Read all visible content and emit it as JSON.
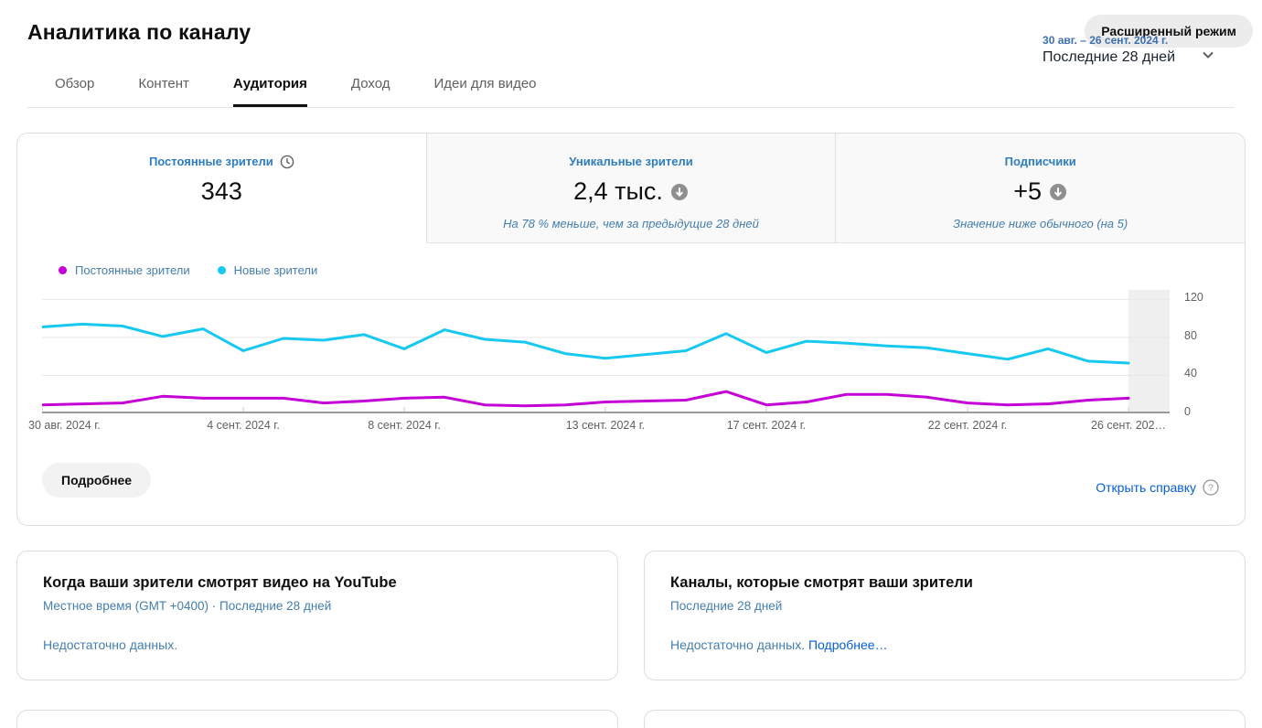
{
  "header": {
    "title": "Аналитика по каналу",
    "advanced_mode_label": "Расширенный режим"
  },
  "tabs": [
    {
      "label": "Обзор"
    },
    {
      "label": "Контент"
    },
    {
      "label": "Аудитория"
    },
    {
      "label": "Доход"
    },
    {
      "label": "Идеи для видео"
    }
  ],
  "active_tab": "Аудитория",
  "date_range": {
    "range": "30 авг. – 26 сент. 2024 г.",
    "preset": "Последние 28 дней"
  },
  "metrics": [
    {
      "label": "Постоянные зрители",
      "value": "343",
      "subtitle": "",
      "icon": "clock-icon",
      "selected": true
    },
    {
      "label": "Уникальные зрители",
      "value": "2,4 тыс.",
      "subtitle": "На 78 % меньше, чем за предыдущие 28 дней",
      "icon": "arrow-down-circle-icon",
      "selected": false
    },
    {
      "label": "Подписчики",
      "value": "+5",
      "subtitle": "Значение ниже обычного (на 5)",
      "icon": "arrow-down-circle-icon",
      "selected": false
    }
  ],
  "legend": [
    {
      "label": "Постоянные зрители",
      "color": "#c400d6"
    },
    {
      "label": "Новые зрители",
      "color": "#17c9f0"
    }
  ],
  "chart_data": {
    "type": "line",
    "title": "Постоянные и новые зрители по дням",
    "x_labels": [
      "30 авг. 2024 г.",
      "4 сент. 2024 г.",
      "8 сент. 2024 г.",
      "13 сент. 2024 г.",
      "17 сент. 2024 г.",
      "22 сент. 2024 г.",
      "26 сент. 202…"
    ],
    "x_tick_days": [
      0,
      5,
      9,
      14,
      18,
      23,
      27
    ],
    "y_ticks": [
      0,
      40,
      80,
      120
    ],
    "ylim": [
      0,
      130
    ],
    "grid": "horizontal",
    "legend_position": "top-left",
    "incomplete_data_band_at_end": true,
    "series": [
      {
        "name": "Постоянные зрители",
        "color": "#c400d6",
        "values": [
          9,
          10,
          11,
          18,
          16,
          16,
          16,
          11,
          13,
          16,
          17,
          9,
          8,
          9,
          12,
          13,
          14,
          23,
          9,
          12,
          20,
          20,
          17,
          11,
          9,
          10,
          14,
          16
        ]
      },
      {
        "name": "Новые зрители",
        "color": "#17c9f0",
        "values": [
          91,
          94,
          92,
          81,
          89,
          66,
          79,
          77,
          83,
          68,
          88,
          78,
          75,
          63,
          58,
          62,
          66,
          84,
          64,
          76,
          74,
          71,
          69,
          63,
          57,
          68,
          55,
          53
        ]
      }
    ]
  },
  "chart_footer": {
    "details_label": "Подробнее",
    "help_label": "Открыть справку"
  },
  "cards": [
    {
      "title": "Когда ваши зрители смотрят видео на YouTube",
      "subtitle": "Местное время (GMT +0400) · Последние 28 дней",
      "body": "Недостаточно данных.",
      "link": ""
    },
    {
      "title": "Каналы, которые смотрят ваши зрители",
      "subtitle": "Последние 28 дней",
      "body": "Недостаточно данных. ",
      "link": "Подробнее…"
    }
  ]
}
